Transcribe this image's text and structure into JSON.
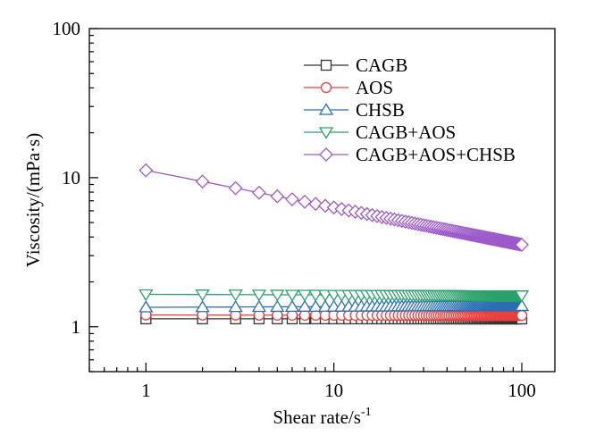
{
  "chart_data": {
    "type": "line",
    "xlabel": "Shear rate/s",
    "xlabel_superscript": "-1",
    "ylabel": "Viscosity/(mPa·s)",
    "xscale": "log",
    "yscale": "log",
    "xlim": [
      0.5,
      150
    ],
    "ylim": [
      0.5,
      100
    ],
    "xticks": [
      1,
      10,
      100
    ],
    "xtick_labels": [
      "1",
      "10",
      "100"
    ],
    "yticks": [
      1,
      10,
      100
    ],
    "ytick_labels": [
      "1",
      "10",
      "100"
    ],
    "grid": false,
    "legend_position": "top-right",
    "x": [
      1,
      2,
      3,
      4,
      5,
      6,
      7,
      8,
      9,
      10,
      11,
      12,
      13,
      14,
      15,
      16,
      17,
      18,
      19,
      20,
      21,
      22,
      23,
      24,
      25,
      26,
      27,
      28,
      29,
      30,
      31,
      32,
      33,
      34,
      35,
      36,
      37,
      38,
      39,
      40,
      41,
      42,
      43,
      44,
      45,
      46,
      47,
      48,
      49,
      50,
      51,
      52,
      53,
      54,
      55,
      56,
      57,
      58,
      59,
      60,
      61,
      62,
      63,
      64,
      65,
      66,
      67,
      68,
      69,
      70,
      71,
      72,
      73,
      74,
      75,
      76,
      77,
      78,
      79,
      80,
      81,
      82,
      83,
      84,
      85,
      86,
      87,
      88,
      89,
      90,
      91,
      92,
      93,
      94,
      95,
      96,
      97,
      98,
      99,
      100
    ],
    "series": [
      {
        "name": "CAGB",
        "color": "#333333",
        "marker": "square",
        "y_start": 1.13,
        "y_end": 1.13,
        "y_exponent": 0
      },
      {
        "name": "AOS",
        "color": "#e8403f",
        "marker": "circle",
        "y_start": 1.2,
        "y_end": 1.19,
        "y_exponent": 0
      },
      {
        "name": "CHSB",
        "color": "#2a6db5",
        "marker": "triangle-up",
        "y_start": 1.35,
        "y_end": 1.38,
        "y_exponent": 0
      },
      {
        "name": "CAGB+AOS",
        "color": "#2aa06a",
        "marker": "triangle-down",
        "y_start": 1.65,
        "y_end": 1.62,
        "y_exponent": 0
      },
      {
        "name": "CAGB+AOS+CHSB",
        "color": "#9b59c9",
        "marker": "diamond",
        "y_start": 11.2,
        "y_end": 3.55,
        "y_exponent": -0.2494
      }
    ]
  }
}
